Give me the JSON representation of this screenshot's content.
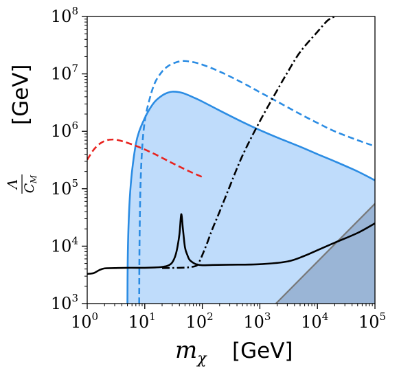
{
  "chart_data": {
    "type": "line",
    "title": "",
    "xlabel": {
      "symbol": "m",
      "subscript": "χ",
      "unit": "[GeV]"
    },
    "ylabel": {
      "numerator": "Λ",
      "denominator": "C",
      "denominator_subscript": "M",
      "unit": "[GeV]"
    },
    "x_scale": "log",
    "y_scale": "log",
    "xlim": [
      1,
      100000
    ],
    "ylim": [
      1000,
      100000000
    ],
    "x_ticks": [
      {
        "value": 1,
        "base": "10",
        "exp": "0"
      },
      {
        "value": 10,
        "base": "10",
        "exp": "1"
      },
      {
        "value": 100,
        "base": "10",
        "exp": "2"
      },
      {
        "value": 1000,
        "base": "10",
        "exp": "3"
      },
      {
        "value": 10000,
        "base": "10",
        "exp": "4"
      },
      {
        "value": 100000,
        "base": "10",
        "exp": "5"
      }
    ],
    "y_ticks": [
      {
        "value": 1000,
        "base": "10",
        "exp": "3"
      },
      {
        "value": 10000,
        "base": "10",
        "exp": "4"
      },
      {
        "value": 100000,
        "base": "10",
        "exp": "5"
      },
      {
        "value": 1000000,
        "base": "10",
        "exp": "6"
      },
      {
        "value": 10000000,
        "base": "10",
        "exp": "7"
      },
      {
        "value": 100000000,
        "base": "10",
        "exp": "8"
      }
    ],
    "grid": false,
    "legend": "none",
    "series": [
      {
        "key": "blue-solid",
        "style": "solid",
        "color": "#2b8ce3",
        "fill": "#bfdcfb",
        "x": [
          5,
          5.05,
          5.2,
          5.5,
          6,
          7,
          8,
          10,
          12,
          15,
          20,
          25,
          30,
          40,
          50,
          70,
          100,
          200,
          500,
          1000,
          2000,
          5000,
          10000,
          20000,
          50000,
          100000
        ],
        "y": [
          1000,
          5000,
          20000,
          70000,
          200000,
          600000,
          1000000,
          1700000,
          2400000,
          3300000,
          4200000,
          4700000,
          4900000,
          4800000,
          4500000,
          3900000,
          3300000,
          2300000,
          1450000,
          1050000,
          780000,
          540000,
          400000,
          300000,
          200000,
          140000
        ]
      },
      {
        "key": "blue-dashed",
        "style": "dashed",
        "color": "#2b8ce3",
        "x": [
          8,
          8.1,
          8.4,
          9,
          10,
          12,
          15,
          20,
          25,
          30,
          40,
          50,
          70,
          100,
          200,
          500,
          1000,
          2000,
          5000,
          10000,
          20000,
          50000,
          100000
        ],
        "y": [
          1000,
          10000,
          100000,
          500000,
          1500000,
          3500000,
          7000000,
          11000000,
          13500000,
          15000000,
          16500000,
          16800000,
          16000000,
          14500000,
          11000000,
          7000000,
          4800000,
          3300000,
          2000000,
          1400000,
          1000000,
          700000,
          550000
        ]
      },
      {
        "key": "red-dashed",
        "style": "dashed",
        "color": "#e8231f",
        "x": [
          1,
          1.3,
          1.7,
          2.2,
          2.8,
          3.5,
          5,
          8,
          15,
          30,
          60,
          100
        ],
        "y": [
          320000,
          480000,
          620000,
          700000,
          720000,
          700000,
          630000,
          530000,
          400000,
          280000,
          200000,
          160000
        ]
      },
      {
        "key": "black-solid",
        "style": "solid",
        "color": "#000000",
        "x": [
          1,
          1.3,
          1.6,
          2,
          3,
          5,
          10,
          15,
          20,
          25,
          30,
          35,
          40,
          43,
          46,
          50,
          55,
          60,
          70,
          80,
          100,
          150,
          300,
          1000,
          3000,
          6000,
          10000,
          20000,
          50000,
          100000
        ],
        "y": [
          3300,
          3400,
          3800,
          4100,
          4150,
          4200,
          4200,
          4250,
          4350,
          4550,
          5200,
          7500,
          16000,
          36000,
          20000,
          9500,
          7000,
          5800,
          5100,
          4800,
          4650,
          4700,
          4750,
          4850,
          5400,
          6800,
          8500,
          11500,
          17000,
          25000
        ]
      },
      {
        "key": "black-dashdot",
        "style": "dashdot",
        "color": "#000000",
        "x": [
          20,
          40,
          60,
          80,
          90,
          100,
          120,
          150,
          200,
          300,
          500,
          1000,
          2000,
          3000,
          5000,
          10000,
          15000,
          20000
        ],
        "y": [
          4150,
          4200,
          4300,
          4600,
          5500,
          7000,
          11000,
          20000,
          40000,
          110000,
          380000,
          1500000,
          5200000,
          10500000,
          24000000,
          54000000,
          85000000,
          100000000
        ]
      },
      {
        "key": "gray-region",
        "style": "solid",
        "color": "#777777",
        "fill": "#9ab5d6",
        "x": [
          1900,
          100000
        ],
        "y": [
          1000,
          55000
        ]
      }
    ]
  }
}
